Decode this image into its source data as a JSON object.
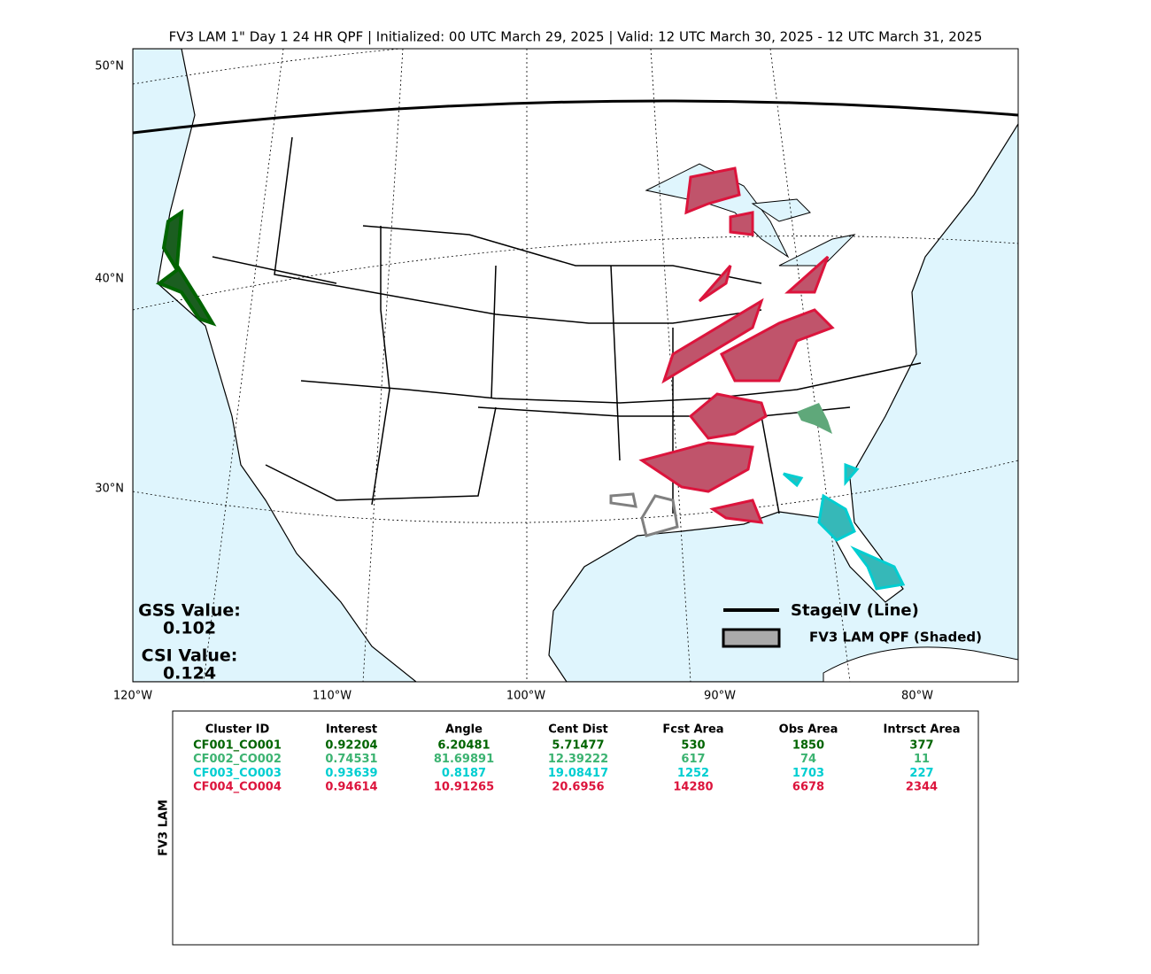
{
  "title": "FV3 LAM 1\" Day 1 24 HR QPF | Initialized: 00 UTC March 29, 2025 | Valid: 12 UTC March 30, 2025 - 12 UTC March 31, 2025",
  "map": {
    "lat_labels": [
      "50°N",
      "40°N",
      "30°N"
    ],
    "lon_labels": [
      "120°W",
      "110°W",
      "100°W",
      "90°W",
      "80°W"
    ],
    "gss_label": "GSS Value:",
    "gss_value": "0.102",
    "csi_label": "CSI Value:",
    "csi_value": "0.124",
    "legend": [
      "StageIV (Line)",
      "FV3 LAM QPF (Shaded)"
    ]
  },
  "table": {
    "side_label": "FV3 LAM",
    "headers": [
      "Cluster ID",
      "Interest",
      "Angle",
      "Cent Dist",
      "Fcst Area",
      "Obs Area",
      "Intrsct Area"
    ],
    "row_colors": [
      "#006400",
      "#3cb371",
      "#00ced1",
      "#dc143c"
    ],
    "rows": [
      [
        "CF001_CO001",
        "0.92204",
        "6.20481",
        "5.71477",
        "530",
        "1850",
        "377"
      ],
      [
        "CF002_CO002",
        "0.74531",
        "81.69891",
        "12.39222",
        "617",
        "74",
        "11"
      ],
      [
        "CF003_CO003",
        "0.93639",
        "0.8187",
        "19.08417",
        "1252",
        "1703",
        "227"
      ],
      [
        "CF004_CO004",
        "0.94614",
        "10.91265",
        "20.6956",
        "14280",
        "6678",
        "2344"
      ]
    ]
  }
}
